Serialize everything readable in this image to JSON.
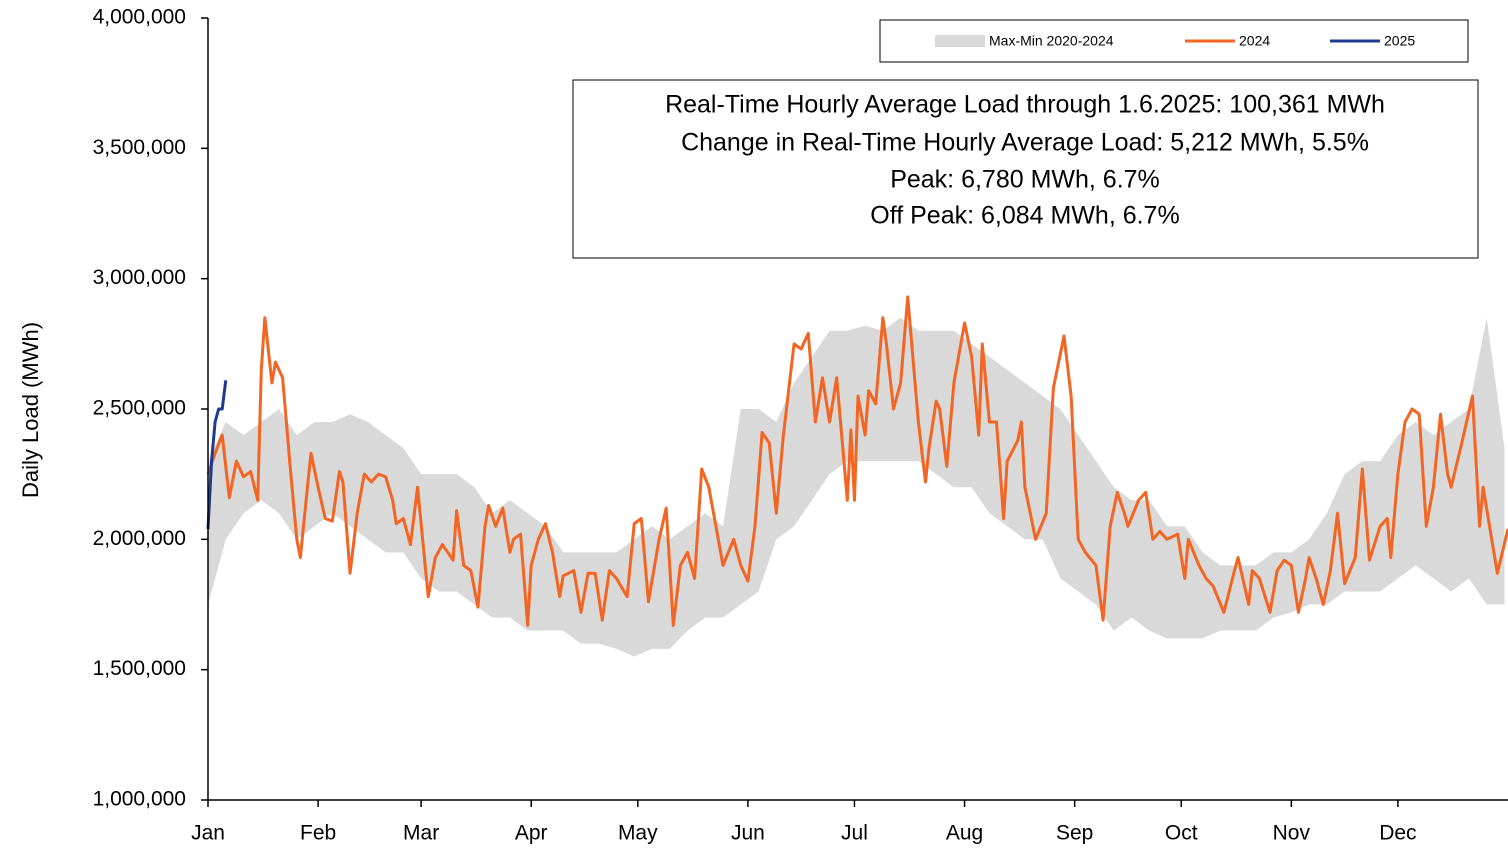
{
  "chart_data": {
    "type": "line",
    "y_label": "Daily Load (MWh)",
    "annotations": [
      "Real-Time Hourly Average Load through 1.6.2025: 100,361 MWh",
      "Change in Real-Time Hourly Average Load: 5,212 MWh, 5.5%",
      "Peak: 6,780 MWh, 6.7%",
      "Off Peak: 6,084 MWh, 6.7%"
    ],
    "legend": "upper right",
    "xlim": [
      0,
      366
    ],
    "xticks": [
      {
        "value": 0,
        "label": "Jan"
      },
      {
        "value": 31,
        "label": "Feb"
      },
      {
        "value": 60,
        "label": "Mar"
      },
      {
        "value": 91,
        "label": "Apr"
      },
      {
        "value": 121,
        "label": "May"
      },
      {
        "value": 152,
        "label": "Jun"
      },
      {
        "value": 182,
        "label": "Jul"
      },
      {
        "value": 213,
        "label": "Aug"
      },
      {
        "value": 244,
        "label": "Sep"
      },
      {
        "value": 274,
        "label": "Oct"
      },
      {
        "value": 305,
        "label": "Nov"
      },
      {
        "value": 335,
        "label": "Dec"
      }
    ],
    "ylim": [
      1000000,
      4000000
    ],
    "yticks": [
      {
        "value": 1000000,
        "label": "1,000,000"
      },
      {
        "value": 1500000,
        "label": "1,500,000"
      },
      {
        "value": 2000000,
        "label": "2,000,000"
      },
      {
        "value": 2500000,
        "label": "2,500,000"
      },
      {
        "value": 3000000,
        "label": "3,000,000"
      },
      {
        "value": 3500000,
        "label": "3,500,000"
      },
      {
        "value": 4000000,
        "label": "4,000,000"
      }
    ],
    "series": [
      {
        "name": "Max-Min 2020-2024",
        "color": "#d9d9d9",
        "x": [
          0,
          5,
          10,
          15,
          20,
          25,
          30,
          35,
          40,
          45,
          50,
          55,
          60,
          65,
          70,
          75,
          80,
          85,
          90,
          95,
          100,
          105,
          110,
          115,
          120,
          125,
          130,
          135,
          140,
          145,
          150,
          155,
          160,
          165,
          170,
          175,
          180,
          185,
          190,
          195,
          200,
          205,
          210,
          215,
          220,
          225,
          230,
          235,
          240,
          245,
          250,
          255,
          260,
          265,
          270,
          275,
          280,
          285,
          290,
          295,
          300,
          305,
          310,
          315,
          320,
          325,
          330,
          335,
          340,
          345,
          350,
          355,
          360,
          365
        ],
        "upper": [
          2300000,
          2450000,
          2400000,
          2450000,
          2500000,
          2400000,
          2450000,
          2450000,
          2480000,
          2450000,
          2400000,
          2350000,
          2250000,
          2250000,
          2250000,
          2200000,
          2100000,
          2150000,
          2100000,
          2050000,
          1950000,
          1950000,
          1950000,
          1950000,
          2000000,
          2050000,
          2000000,
          2050000,
          2100000,
          2050000,
          2500000,
          2500000,
          2450000,
          2600000,
          2700000,
          2800000,
          2800000,
          2820000,
          2800000,
          2850000,
          2800000,
          2800000,
          2800000,
          2750000,
          2700000,
          2650000,
          2600000,
          2550000,
          2500000,
          2400000,
          2300000,
          2200000,
          2150000,
          2150000,
          2050000,
          2050000,
          1950000,
          1900000,
          1900000,
          1900000,
          1950000,
          1950000,
          2000000,
          2100000,
          2250000,
          2300000,
          2300000,
          2400000,
          2450000,
          2400000,
          2450000,
          2500000,
          2850000,
          2350000
        ],
        "lower": [
          1750000,
          2000000,
          2100000,
          2150000,
          2100000,
          2000000,
          2050000,
          2100000,
          2050000,
          2000000,
          1950000,
          1950000,
          1850000,
          1800000,
          1800000,
          1750000,
          1700000,
          1700000,
          1650000,
          1650000,
          1650000,
          1600000,
          1600000,
          1580000,
          1550000,
          1580000,
          1580000,
          1650000,
          1700000,
          1700000,
          1750000,
          1800000,
          2000000,
          2050000,
          2150000,
          2250000,
          2300000,
          2300000,
          2300000,
          2300000,
          2300000,
          2250000,
          2200000,
          2200000,
          2100000,
          2050000,
          2000000,
          2000000,
          1850000,
          1800000,
          1750000,
          1650000,
          1700000,
          1650000,
          1620000,
          1620000,
          1620000,
          1650000,
          1650000,
          1650000,
          1700000,
          1720000,
          1750000,
          1750000,
          1800000,
          1800000,
          1800000,
          1850000,
          1900000,
          1850000,
          1800000,
          1850000,
          1750000,
          1750000
        ]
      },
      {
        "name": "2024",
        "color": "#f26522",
        "x": [
          0,
          2,
          4,
          6,
          8,
          10,
          12,
          14,
          15,
          16,
          18,
          19,
          21,
          23,
          25,
          26,
          28,
          29,
          31,
          33,
          35,
          37,
          38,
          40,
          42,
          44,
          46,
          48,
          50,
          52,
          53,
          55,
          57,
          59,
          62,
          64,
          66,
          69,
          70,
          72,
          74,
          76,
          78,
          79,
          81,
          83,
          85,
          86,
          88,
          90,
          91,
          93,
          95,
          97,
          99,
          100,
          103,
          105,
          107,
          109,
          111,
          113,
          115,
          118,
          120,
          122,
          124,
          127,
          129,
          131,
          133,
          135,
          137,
          139,
          141,
          143,
          145,
          148,
          150,
          152,
          154,
          156,
          158,
          160,
          162,
          165,
          167,
          169,
          171,
          173,
          175,
          177,
          180,
          181,
          182,
          183,
          185,
          186,
          188,
          190,
          191,
          193,
          195,
          197,
          200,
          202,
          203,
          205,
          206,
          208,
          210,
          213,
          215,
          217,
          218,
          220,
          222,
          224,
          225,
          228,
          229,
          230,
          233,
          236,
          238,
          241,
          243,
          245,
          247,
          250,
          252,
          254,
          256,
          258,
          259,
          262,
          264,
          266,
          268,
          270,
          273,
          275,
          276,
          279,
          281,
          283,
          286,
          289,
          290,
          293,
          294,
          296,
          299,
          301,
          303,
          305,
          307,
          309,
          310,
          312,
          314,
          316,
          318,
          320,
          323,
          325,
          327,
          330,
          332,
          333,
          335,
          337,
          339,
          341,
          343,
          345,
          347,
          349,
          350,
          353,
          356,
          358,
          359,
          363,
          366
        ],
        "values": [
          2250000,
          2330000,
          2400000,
          2160000,
          2300000,
          2240000,
          2260000,
          2150000,
          2650000,
          2850000,
          2600000,
          2680000,
          2620000,
          2300000,
          2000000,
          1930000,
          2200000,
          2330000,
          2200000,
          2080000,
          2070000,
          2260000,
          2220000,
          1870000,
          2100000,
          2250000,
          2220000,
          2250000,
          2240000,
          2150000,
          2060000,
          2080000,
          1980000,
          2200000,
          1780000,
          1930000,
          1980000,
          1920000,
          2110000,
          1900000,
          1880000,
          1740000,
          2050000,
          2130000,
          2050000,
          2120000,
          1950000,
          2000000,
          2020000,
          1670000,
          1900000,
          2000000,
          2060000,
          1950000,
          1780000,
          1860000,
          1880000,
          1720000,
          1870000,
          1870000,
          1690000,
          1880000,
          1850000,
          1780000,
          2060000,
          2080000,
          1760000,
          2000000,
          2120000,
          1670000,
          1900000,
          1950000,
          1850000,
          2270000,
          2200000,
          2050000,
          1900000,
          2000000,
          1900000,
          1840000,
          2050000,
          2410000,
          2370000,
          2100000,
          2400000,
          2750000,
          2730000,
          2790000,
          2450000,
          2620000,
          2450000,
          2620000,
          2150000,
          2420000,
          2150000,
          2550000,
          2400000,
          2570000,
          2520000,
          2850000,
          2750000,
          2500000,
          2600000,
          2930000,
          2450000,
          2220000,
          2350000,
          2530000,
          2500000,
          2280000,
          2600000,
          2830000,
          2700000,
          2400000,
          2750000,
          2450000,
          2450000,
          2080000,
          2300000,
          2380000,
          2450000,
          2200000,
          2000000,
          2100000,
          2580000,
          2780000,
          2550000,
          2000000,
          1950000,
          1900000,
          1690000,
          2050000,
          2180000,
          2100000,
          2050000,
          2150000,
          2180000,
          2000000,
          2030000,
          2000000,
          2020000,
          1850000,
          2000000,
          1900000,
          1850000,
          1820000,
          1720000,
          1880000,
          1930000,
          1750000,
          1880000,
          1850000,
          1720000,
          1880000,
          1920000,
          1900000,
          1720000,
          1850000,
          1930000,
          1850000,
          1750000,
          1880000,
          2100000,
          1830000,
          1930000,
          2270000,
          1920000,
          2050000,
          2080000,
          1930000,
          2250000,
          2450000,
          2500000,
          2480000,
          2050000,
          2200000,
          2480000,
          2250000,
          2200000,
          2370000,
          2550000,
          2050000,
          2200000,
          1870000,
          2040000
        ]
      },
      {
        "name": "2025",
        "color": "#1f3a93",
        "x": [
          0,
          1,
          2,
          3,
          4,
          5
        ],
        "values": [
          2040000,
          2300000,
          2450000,
          2500000,
          2500000,
          2610000
        ]
      }
    ]
  }
}
